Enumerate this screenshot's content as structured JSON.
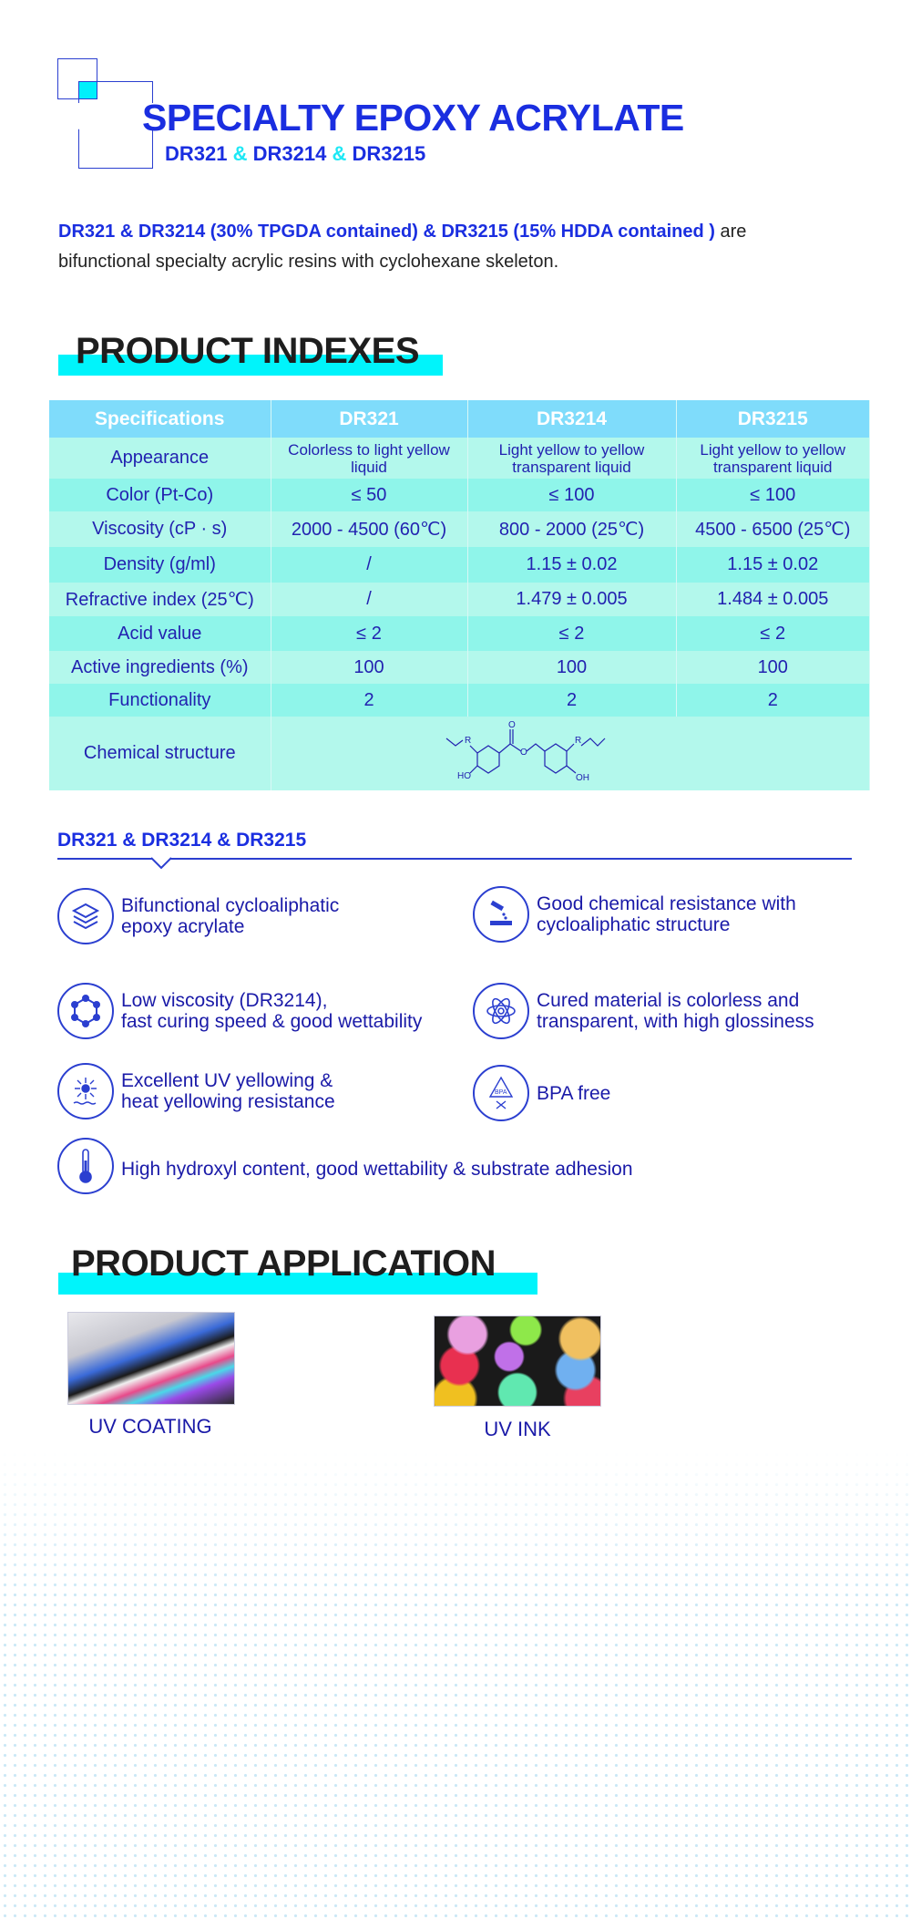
{
  "header": {
    "title": "SPECIALTY EPOXY ACRYLATE",
    "subtitle_parts": [
      "DR321",
      "&",
      "DR3214",
      "&",
      "DR3215"
    ]
  },
  "intro": {
    "highlight": "DR321 & DR3214 (30% TPGDA contained)  & DR3215 (15% HDDA contained )",
    "rest_line1": " are",
    "rest_line2": "bifunctional specialty acrylic resins with cyclohexane skeleton."
  },
  "indexes": {
    "title": "PRODUCT INDEXES",
    "columns": [
      "Specifications",
      "DR321",
      "DR3214",
      "DR3215"
    ],
    "rows": [
      [
        "Appearance",
        "Colorless to light yellow liquid",
        "Light yellow to yellow transparent liquid",
        "Light yellow to yellow transparent liquid"
      ],
      [
        "Color (Pt-Co)",
        "≤ 50",
        "≤ 100",
        "≤ 100"
      ],
      [
        "Viscosity (cP · s)",
        "2000 - 4500 (60℃)",
        "800 - 2000 (25℃)",
        "4500 - 6500 (25℃)"
      ],
      [
        "Density (g/ml)",
        "/",
        "1.15 ± 0.02",
        "1.15 ± 0.02"
      ],
      [
        "Refractive index (25℃)",
        "/",
        "1.479 ± 0.005",
        "1.484 ± 0.005"
      ],
      [
        "Acid value",
        "≤ 2",
        "≤ 2",
        "≤ 2"
      ],
      [
        "Active ingredients (%)",
        "100",
        "100",
        "100"
      ],
      [
        "Functionality",
        "2",
        "2",
        "2"
      ]
    ],
    "structure_label": "Chemical structure",
    "structure_atoms": {
      "r": "R",
      "o": "O",
      "ho": "HO",
      "oh": "OH"
    }
  },
  "features": {
    "heading": "DR321 & DR3214 & DR3215",
    "items": [
      {
        "icon": "layers-icon",
        "line1": "Bifunctional cycloaliphatic",
        "line2": "epoxy acrylate"
      },
      {
        "icon": "chemical-pour-icon",
        "line1": "Good chemical resistance with",
        "line2": "cycloaliphatic structure"
      },
      {
        "icon": "hexagon-molecule-icon",
        "line1": "Low viscosity (DR3214),",
        "line2": "fast curing speed & good wettability"
      },
      {
        "icon": "atom-icon",
        "line1": "Cured material is colorless and",
        "line2": "transparent, with high glossiness"
      },
      {
        "icon": "sun-uv-icon",
        "line1": "Excellent UV yellowing &",
        "line2": "heat yellowing resistance"
      },
      {
        "icon": "bpa-free-icon",
        "line1": "BPA free",
        "line2": "",
        "badge": "BPA"
      },
      {
        "icon": "thermometer-icon",
        "line1": "High hydroxyl content, good wettability & substrate adhesion",
        "line2": ""
      }
    ]
  },
  "application": {
    "title": "PRODUCT APPLICATION",
    "items": [
      {
        "label": "UV COATING"
      },
      {
        "label": "UV INK"
      }
    ]
  },
  "colors": {
    "brand_blue": "#1a2ee0",
    "cyan": "#00f4fb",
    "header_row": "#7fdcfb",
    "row_light": "#b3f8ec",
    "row_dark": "#8ff5ea"
  }
}
